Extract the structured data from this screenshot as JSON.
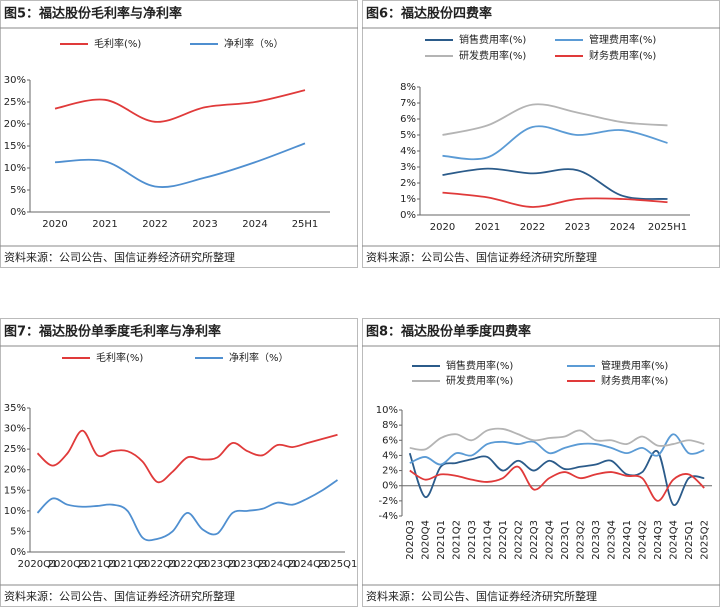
{
  "chart_data": [
    {
      "type": "line",
      "title": "图5：福达股份毛利率与净利率",
      "source": "资料来源：公司公告、国信证券经济研究所整理",
      "categories": [
        "2020",
        "2021",
        "2022",
        "2023",
        "2024",
        "25H1"
      ],
      "series": [
        {
          "name": "毛利率(%)",
          "color": "#e03a3a",
          "values": [
            23.5,
            25.5,
            20.5,
            23.8,
            25,
            27.7
          ]
        },
        {
          "name": "净利率（%）",
          "color": "#4f8fd0",
          "values": [
            11.3,
            11.5,
            5.8,
            7.8,
            11.3,
            15.6
          ]
        }
      ],
      "ylim": [
        0,
        30
      ],
      "yticks": [
        {
          "value": 0,
          "label": "0%"
        },
        {
          "value": 5,
          "label": "5%"
        },
        {
          "value": 10,
          "label": "10%"
        },
        {
          "value": 15,
          "label": "15%"
        },
        {
          "value": 20,
          "label": "20%"
        },
        {
          "value": 25,
          "label": "25%"
        },
        {
          "value": 30,
          "label": "30%"
        }
      ]
    },
    {
      "type": "line",
      "title": "图6：福达股份四费率",
      "source": "资料来源：公司公告、国信证券经济研究所整理",
      "categories": [
        "2020",
        "2021",
        "2022",
        "2023",
        "2024",
        "2025H1"
      ],
      "series": [
        {
          "name": "销售费用率(%)",
          "color": "#2b5b8a",
          "values": [
            2.5,
            2.9,
            2.6,
            2.8,
            1.2,
            1.0
          ]
        },
        {
          "name": "管理费用率(%)",
          "color": "#5b9bd5",
          "values": [
            3.7,
            3.6,
            5.5,
            5.0,
            5.3,
            4.5
          ]
        },
        {
          "name": "研发费用率(%)",
          "color": "#b4b4b4",
          "values": [
            5.0,
            5.6,
            6.9,
            6.4,
            5.8,
            5.6
          ]
        },
        {
          "name": "财务费用率(%)",
          "color": "#e03a3a",
          "values": [
            1.4,
            1.1,
            0.5,
            1.0,
            1.0,
            0.8
          ]
        }
      ],
      "ylim": [
        0,
        8
      ],
      "yticks": [
        {
          "value": 0,
          "label": "0%"
        },
        {
          "value": 1,
          "label": "1%"
        },
        {
          "value": 2,
          "label": "2%"
        },
        {
          "value": 3,
          "label": "3%"
        },
        {
          "value": 4,
          "label": "4%"
        },
        {
          "value": 5,
          "label": "5%"
        },
        {
          "value": 6,
          "label": "6%"
        },
        {
          "value": 7,
          "label": "7%"
        },
        {
          "value": 8,
          "label": "8%"
        }
      ]
    },
    {
      "type": "line",
      "title": "图7：福达股份单季度毛利率与净利率",
      "source": "资料来源：公司公告、国信证券经济研究所整理",
      "categories": [
        "2020Q1",
        null,
        "2020Q3",
        null,
        "2021Q1",
        null,
        "2021Q3",
        null,
        "2022Q1",
        null,
        "2022Q3",
        null,
        "2023Q1",
        null,
        "2023Q3",
        null,
        "2024Q1",
        null,
        "2024Q3",
        null,
        "2025Q1"
      ],
      "series": [
        {
          "name": "毛利率(%)",
          "color": "#e03a3a",
          "values": [
            24,
            21,
            24,
            29.5,
            23.5,
            24.5,
            24.5,
            22,
            17,
            19.5,
            23,
            22.5,
            23,
            26.5,
            24.5,
            23.5,
            26,
            25.5,
            26.5,
            27.5,
            28.5
          ]
        },
        {
          "name": "净利率（%）",
          "color": "#4f8fd0",
          "values": [
            9.5,
            13,
            11.5,
            11,
            11.2,
            11.5,
            10,
            3.5,
            3.2,
            5,
            9.5,
            5.5,
            4.5,
            9.5,
            10,
            10.5,
            12,
            11.5,
            13,
            15,
            17.5
          ]
        }
      ],
      "ylim": [
        0,
        35
      ],
      "yticks": [
        {
          "value": 0,
          "label": "0%"
        },
        {
          "value": 5,
          "label": "5%"
        },
        {
          "value": 10,
          "label": "10%"
        },
        {
          "value": 15,
          "label": "15%"
        },
        {
          "value": 20,
          "label": "20%"
        },
        {
          "value": 25,
          "label": "25%"
        },
        {
          "value": 30,
          "label": "30%"
        },
        {
          "value": 35,
          "label": "35%"
        }
      ]
    },
    {
      "type": "line",
      "title": "图8：福达股份单季度四费率",
      "source": "资料来源：公司公告、国信证券经济研究所整理",
      "categories": [
        "2020Q3",
        "2020Q4",
        "2021Q1",
        "2021Q2",
        "2021Q3",
        "2021Q4",
        "2022Q1",
        "2022Q2",
        "2022Q3",
        "2022Q4",
        "2023Q1",
        "2023Q2",
        "2023Q3",
        "2023Q4",
        "2024Q1",
        "2024Q2",
        "2024Q3",
        "2024Q4",
        "2025Q1",
        "2025Q2"
      ],
      "series": [
        {
          "name": "销售费用率(%)",
          "color": "#2b5b8a",
          "values": [
            4.3,
            -1.5,
            2.5,
            3.0,
            3.5,
            3.8,
            2.0,
            3.3,
            2.0,
            3.3,
            2.2,
            2.5,
            2.8,
            3.3,
            1.5,
            1.8,
            4.5,
            -2.5,
            1.0,
            1.0
          ]
        },
        {
          "name": "管理费用率(%)",
          "color": "#5b9bd5",
          "values": [
            3.0,
            3.8,
            2.8,
            4.3,
            4.0,
            5.5,
            5.8,
            5.5,
            5.8,
            4.3,
            5.0,
            5.5,
            5.5,
            5.0,
            4.3,
            5.0,
            4.0,
            6.8,
            4.3,
            4.7
          ]
        },
        {
          "name": "研发费用率(%)",
          "color": "#b4b4b4",
          "values": [
            5.0,
            4.8,
            6.3,
            6.8,
            6.0,
            7.3,
            7.5,
            6.8,
            6.0,
            6.3,
            6.5,
            7.3,
            6.0,
            6.0,
            5.5,
            6.5,
            5.3,
            5.5,
            6.0,
            5.5
          ]
        },
        {
          "name": "财务费用率(%)",
          "color": "#e03a3a",
          "values": [
            2.0,
            0.8,
            1.5,
            1.3,
            0.8,
            0.5,
            1.0,
            2.5,
            -0.5,
            1.0,
            1.8,
            1.0,
            1.5,
            1.8,
            1.3,
            1.0,
            -2.0,
            0.8,
            1.5,
            -0.3
          ]
        }
      ],
      "ylim": [
        -4,
        10
      ],
      "yticks": [
        {
          "value": -4,
          "label": "-4%"
        },
        {
          "value": -2,
          "label": "-2%"
        },
        {
          "value": 0,
          "label": "0%"
        },
        {
          "value": 2,
          "label": "2%"
        },
        {
          "value": 4,
          "label": "4%"
        },
        {
          "value": 6,
          "label": "6%"
        },
        {
          "value": 8,
          "label": "8%"
        },
        {
          "value": 10,
          "label": "10%"
        }
      ]
    }
  ]
}
